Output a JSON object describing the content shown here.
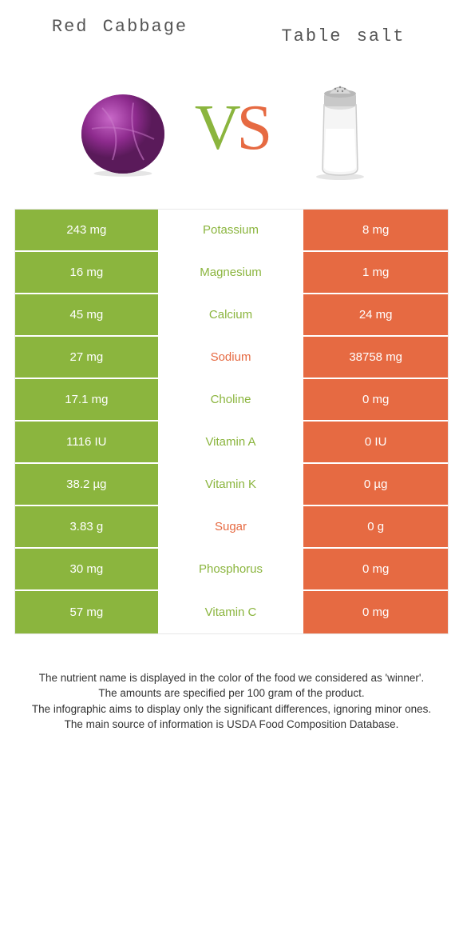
{
  "header": {
    "left_title": "Red Cabbage",
    "right_title": "Table salt"
  },
  "vs": {
    "v": "V",
    "s": "S"
  },
  "colors": {
    "green": "#8bb53e",
    "orange": "#e66a42",
    "cabbage": "#8e2b8e",
    "cabbage_light": "#b04db0",
    "background": "#ffffff",
    "text_gray": "#555555"
  },
  "table": {
    "rows": [
      {
        "left": "243 mg",
        "label": "Potassium",
        "winner": "green",
        "right": "8 mg"
      },
      {
        "left": "16 mg",
        "label": "Magnesium",
        "winner": "green",
        "right": "1 mg"
      },
      {
        "left": "45 mg",
        "label": "Calcium",
        "winner": "green",
        "right": "24 mg"
      },
      {
        "left": "27 mg",
        "label": "Sodium",
        "winner": "orange",
        "right": "38758 mg"
      },
      {
        "left": "17.1 mg",
        "label": "Choline",
        "winner": "green",
        "right": "0 mg"
      },
      {
        "left": "1116 IU",
        "label": "Vitamin A",
        "winner": "green",
        "right": "0 IU"
      },
      {
        "left": "38.2 µg",
        "label": "Vitamin K",
        "winner": "green",
        "right": "0 µg"
      },
      {
        "left": "3.83 g",
        "label": "Sugar",
        "winner": "orange",
        "right": "0 g"
      },
      {
        "left": "30 mg",
        "label": "Phosphorus",
        "winner": "green",
        "right": "0 mg"
      },
      {
        "left": "57 mg",
        "label": "Vitamin C",
        "winner": "green",
        "right": "0 mg"
      }
    ]
  },
  "footer": {
    "line1": "The nutrient name is displayed in the color of the food we considered as 'winner'.",
    "line2": "The amounts are specified per 100 gram of the product.",
    "line3": "The infographic aims to display only the significant differences, ignoring minor ones.",
    "line4": "The main source of information is USDA Food Composition Database."
  }
}
